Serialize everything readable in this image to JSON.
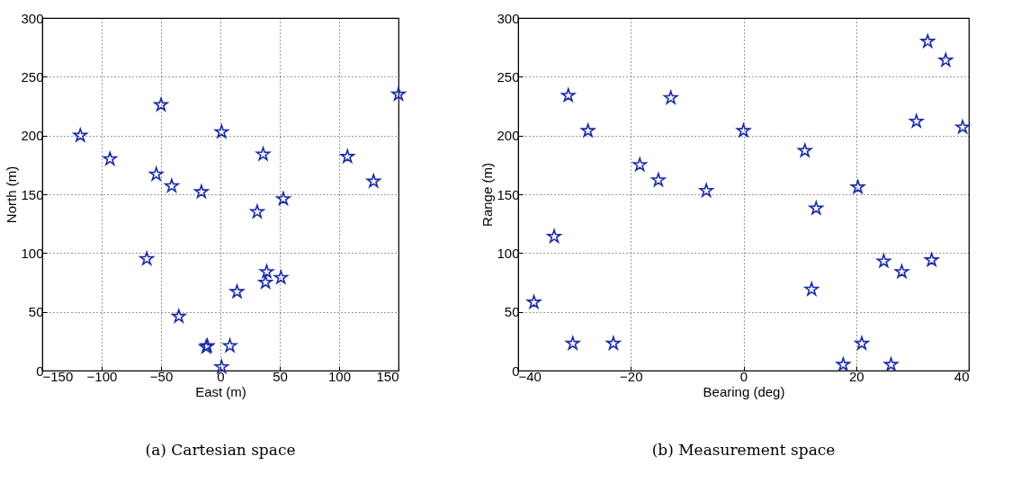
{
  "chart_data": [
    {
      "type": "scatter",
      "xlabel": "East (m)",
      "ylabel": "North (m)",
      "annotations": [
        "(a) Cartesian space"
      ],
      "marker": "star",
      "grid": true,
      "xlim": [
        -150,
        150
      ],
      "ylim": [
        0,
        300
      ],
      "xticks": [
        -150,
        -100,
        -50,
        0,
        50,
        100,
        150
      ],
      "yticks": [
        0,
        50,
        100,
        150,
        200,
        250,
        300
      ],
      "series": [
        {
          "color": "#1a2aa6",
          "x": [
            -118,
            -93,
            -50,
            -54,
            -41,
            -16,
            -62,
            -35,
            1,
            36,
            31,
            53,
            107,
            129,
            150,
            39,
            38,
            51,
            14,
            -11,
            -12,
            8,
            1
          ],
          "values": [
            200,
            180,
            226,
            167,
            157,
            152,
            95,
            46,
            203,
            184,
            135,
            146,
            182,
            161,
            235,
            84,
            75,
            79,
            67,
            21,
            20,
            21,
            3
          ]
        }
      ]
    },
    {
      "type": "scatter",
      "xlabel": "Bearing (deg)",
      "ylabel": "Range (m)",
      "annotations": [
        "(b) Measurement space"
      ],
      "marker": "star",
      "grid": true,
      "xlim": [
        -40,
        40
      ],
      "ylim": [
        0,
        300
      ],
      "xticks": [
        -40,
        -20,
        0,
        20,
        40
      ],
      "yticks": [
        0,
        50,
        100,
        150,
        200,
        250,
        300
      ],
      "series": [
        {
          "color": "#1a2aa6",
          "x": [
            -31.1,
            -12.9,
            -27.6,
            0,
            10.9,
            -18.4,
            -15.1,
            -6.6,
            20.3,
            12.9,
            -33.6,
            -37.2,
            -30.3,
            -23.1,
            12.1,
            24.9,
            28.1,
            33.4,
            21.0,
            17.7,
            26.2,
            32.7,
            35.9,
            30.7,
            38.9
          ],
          "values": [
            234,
            232,
            204,
            204,
            187,
            175,
            162,
            153,
            156,
            138,
            114,
            58,
            23,
            23,
            69,
            93,
            84,
            94,
            23,
            5,
            5,
            280,
            264,
            212,
            207
          ]
        }
      ]
    }
  ]
}
